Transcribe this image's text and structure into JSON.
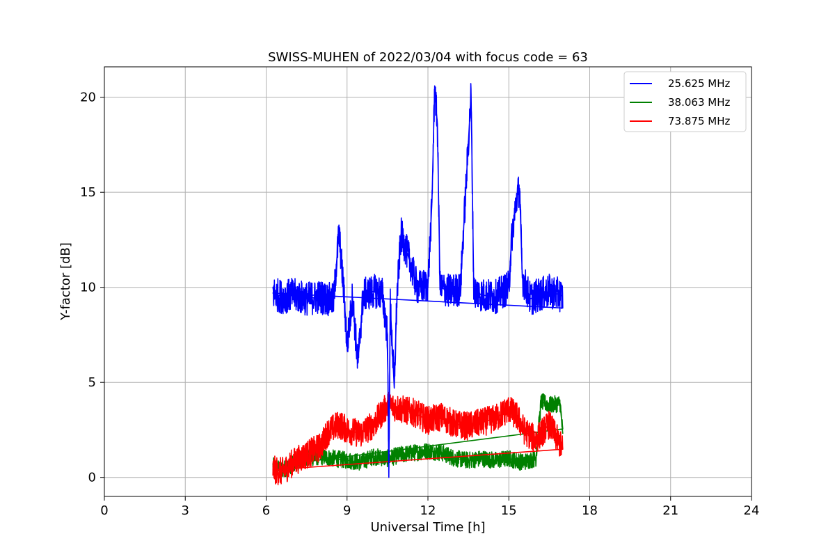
{
  "chart_data": {
    "type": "line",
    "title": "SWISS-MUHEN of 2022/03/04 with focus code = 63",
    "xlabel": "Universal Time [h]",
    "ylabel": "Y-factor [dB]",
    "xlim": [
      0,
      24
    ],
    "ylim": [
      -1,
      21.6
    ],
    "xticks": [
      0,
      3,
      6,
      9,
      12,
      15,
      18,
      21,
      24
    ],
    "yticks": [
      0,
      5,
      10,
      15,
      20
    ],
    "grid": true,
    "legend_position": "top-right",
    "series": [
      {
        "name": "25.625 MHz",
        "color": "#0000ff",
        "points": [
          [
            6.25,
            9.7
          ],
          [
            6.6,
            9.5
          ],
          [
            7.0,
            9.6
          ],
          [
            7.5,
            9.4
          ],
          [
            8.0,
            9.5
          ],
          [
            8.5,
            9.3
          ],
          [
            8.7,
            12.9
          ],
          [
            8.9,
            9.4
          ],
          [
            9.0,
            6.9
          ],
          [
            9.2,
            9.5
          ],
          [
            9.4,
            6.0
          ],
          [
            9.6,
            9.6
          ],
          [
            10.0,
            9.8
          ],
          [
            10.3,
            9.7
          ],
          [
            10.5,
            7.5
          ],
          [
            10.55,
            0.0
          ],
          [
            10.6,
            9.2
          ],
          [
            10.75,
            4.7
          ],
          [
            10.85,
            9.5
          ],
          [
            11.0,
            12.8
          ],
          [
            11.3,
            11.5
          ],
          [
            11.6,
            10.0
          ],
          [
            12.0,
            10.1
          ],
          [
            12.15,
            14.5
          ],
          [
            12.25,
            20.6
          ],
          [
            12.3,
            19.5
          ],
          [
            12.35,
            18.6
          ],
          [
            12.45,
            10.0
          ],
          [
            12.8,
            9.8
          ],
          [
            13.2,
            9.9
          ],
          [
            13.6,
            20.2
          ],
          [
            13.7,
            9.8
          ],
          [
            14.0,
            9.6
          ],
          [
            14.5,
            9.5
          ],
          [
            15.0,
            10.0
          ],
          [
            15.1,
            12.5
          ],
          [
            15.3,
            14.8
          ],
          [
            15.4,
            15.2
          ],
          [
            15.5,
            10.5
          ],
          [
            15.8,
            9.4
          ],
          [
            16.1,
            9.6
          ],
          [
            16.5,
            9.8
          ],
          [
            16.9,
            9.6
          ],
          [
            17.0,
            9.5
          ]
        ]
      },
      {
        "name": "38.063 MHz",
        "color": "#008000",
        "points": [
          [
            6.25,
            0.6
          ],
          [
            6.6,
            0.4
          ],
          [
            7.0,
            0.7
          ],
          [
            7.5,
            1.0
          ],
          [
            8.0,
            1.1
          ],
          [
            8.5,
            1.0
          ],
          [
            9.0,
            0.9
          ],
          [
            9.5,
            0.8
          ],
          [
            10.0,
            1.1
          ],
          [
            10.5,
            1.0
          ],
          [
            11.0,
            1.2
          ],
          [
            11.5,
            1.3
          ],
          [
            12.0,
            1.4
          ],
          [
            12.5,
            1.3
          ],
          [
            13.0,
            1.0
          ],
          [
            13.5,
            0.9
          ],
          [
            14.0,
            1.0
          ],
          [
            14.5,
            0.9
          ],
          [
            15.0,
            1.0
          ],
          [
            15.5,
            0.8
          ],
          [
            16.0,
            1.0
          ],
          [
            16.2,
            4.0
          ],
          [
            16.5,
            3.8
          ],
          [
            16.9,
            3.9
          ],
          [
            17.0,
            2.3
          ]
        ]
      },
      {
        "name": "73.875 MHz",
        "color": "#ff0000",
        "points": [
          [
            6.25,
            0.4
          ],
          [
            6.6,
            0.3
          ],
          [
            7.0,
            0.8
          ],
          [
            7.5,
            1.2
          ],
          [
            8.0,
            1.6
          ],
          [
            8.3,
            2.4
          ],
          [
            8.7,
            2.8
          ],
          [
            9.0,
            2.5
          ],
          [
            9.5,
            2.3
          ],
          [
            10.0,
            2.8
          ],
          [
            10.5,
            3.8
          ],
          [
            11.0,
            3.6
          ],
          [
            11.5,
            3.4
          ],
          [
            12.0,
            3.0
          ],
          [
            12.5,
            3.2
          ],
          [
            13.0,
            2.8
          ],
          [
            13.5,
            2.7
          ],
          [
            14.0,
            2.9
          ],
          [
            14.5,
            3.1
          ],
          [
            15.0,
            3.6
          ],
          [
            15.3,
            3.2
          ],
          [
            15.6,
            2.4
          ],
          [
            16.0,
            2.0
          ],
          [
            16.5,
            2.8
          ],
          [
            16.8,
            2.0
          ],
          [
            17.0,
            1.5
          ]
        ]
      }
    ]
  }
}
